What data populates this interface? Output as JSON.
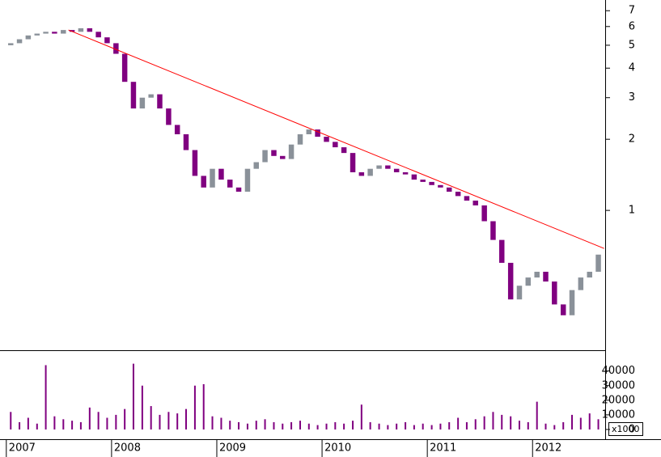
{
  "chart_data": {
    "type": "candlestick",
    "x": [
      2007.042,
      2007.125,
      2007.208,
      2007.292,
      2007.375,
      2007.458,
      2007.542,
      2007.625,
      2007.708,
      2007.792,
      2007.875,
      2007.958,
      2008.042,
      2008.125,
      2008.208,
      2008.292,
      2008.375,
      2008.458,
      2008.542,
      2008.625,
      2008.708,
      2008.792,
      2008.875,
      2008.958,
      2009.042,
      2009.125,
      2009.208,
      2009.292,
      2009.375,
      2009.458,
      2009.542,
      2009.625,
      2009.708,
      2009.792,
      2009.875,
      2009.958,
      2010.042,
      2010.125,
      2010.208,
      2010.292,
      2010.375,
      2010.458,
      2010.542,
      2010.625,
      2010.708,
      2010.792,
      2010.875,
      2010.958,
      2011.042,
      2011.125,
      2011.208,
      2011.292,
      2011.375,
      2011.458,
      2011.542,
      2011.625,
      2011.708,
      2011.792,
      2011.875,
      2011.958,
      2012.042,
      2012.125,
      2012.208,
      2012.292,
      2012.375,
      2012.458,
      2012.542,
      2012.625
    ],
    "open": [
      5.0,
      5.1,
      5.3,
      5.5,
      5.6,
      5.7,
      5.6,
      5.8,
      5.7,
      5.9,
      5.7,
      5.4,
      5.1,
      4.6,
      3.5,
      2.7,
      3.0,
      3.1,
      2.7,
      2.3,
      2.1,
      1.8,
      1.4,
      1.25,
      1.5,
      1.35,
      1.25,
      1.2,
      1.5,
      1.6,
      1.8,
      1.7,
      1.65,
      1.9,
      2.1,
      2.2,
      2.05,
      1.95,
      1.85,
      1.75,
      1.45,
      1.4,
      1.5,
      1.55,
      1.5,
      1.45,
      1.42,
      1.35,
      1.32,
      1.28,
      1.25,
      1.2,
      1.15,
      1.1,
      1.05,
      0.9,
      0.75,
      0.6,
      0.42,
      0.48,
      0.52,
      0.55,
      0.5,
      0.4,
      0.36,
      0.46,
      0.52,
      0.55
    ],
    "close": [
      5.1,
      5.3,
      5.5,
      5.6,
      5.7,
      5.6,
      5.8,
      5.7,
      5.9,
      5.7,
      5.4,
      5.1,
      4.6,
      3.5,
      2.7,
      3.0,
      3.1,
      2.7,
      2.3,
      2.1,
      1.8,
      1.4,
      1.25,
      1.5,
      1.35,
      1.25,
      1.2,
      1.5,
      1.6,
      1.8,
      1.7,
      1.65,
      1.9,
      2.1,
      2.2,
      2.05,
      1.95,
      1.85,
      1.75,
      1.45,
      1.4,
      1.5,
      1.55,
      1.5,
      1.45,
      1.42,
      1.35,
      1.32,
      1.28,
      1.25,
      1.2,
      1.15,
      1.1,
      1.05,
      0.9,
      0.75,
      0.6,
      0.42,
      0.48,
      0.52,
      0.55,
      0.5,
      0.4,
      0.36,
      0.46,
      0.52,
      0.55,
      0.65
    ],
    "volume": [
      12000,
      5000,
      8000,
      4000,
      44000,
      9000,
      7000,
      6000,
      5000,
      15000,
      12000,
      8000,
      10000,
      14000,
      45000,
      30000,
      16000,
      10000,
      12000,
      11000,
      14000,
      30000,
      31000,
      9000,
      8000,
      6000,
      5000,
      4000,
      6000,
      7000,
      5000,
      4000,
      5000,
      6000,
      4000,
      3000,
      4000,
      5000,
      4000,
      6000,
      17000,
      5000,
      4000,
      3000,
      4000,
      5000,
      3000,
      4000,
      3000,
      4000,
      5000,
      8000,
      5000,
      7000,
      9000,
      12000,
      10000,
      9000,
      6000,
      5000,
      19000,
      4000,
      3000,
      5000,
      10000,
      8000,
      11000,
      7000
    ],
    "up_color": "#8a9199",
    "down_color": "#800080",
    "volume_color": "#800080",
    "trendline": {
      "x": [
        2007.59,
        2012.68
      ],
      "y": [
        5.8,
        0.69
      ],
      "color": "#ff0000"
    },
    "log_scale": true,
    "xlim": [
      2006.94,
      2012.69
    ],
    "xticks": [
      2007,
      2008,
      2009,
      2010,
      2011,
      2012
    ],
    "ylim": [
      0.256,
      7.77
    ],
    "yticks": [
      1,
      2,
      3,
      4,
      5,
      6,
      7
    ],
    "volume_lim": [
      -5000,
      52000
    ],
    "volume_ticks": [
      0,
      10000,
      20000,
      30000,
      40000
    ],
    "volume_unit_label": "x1000"
  }
}
